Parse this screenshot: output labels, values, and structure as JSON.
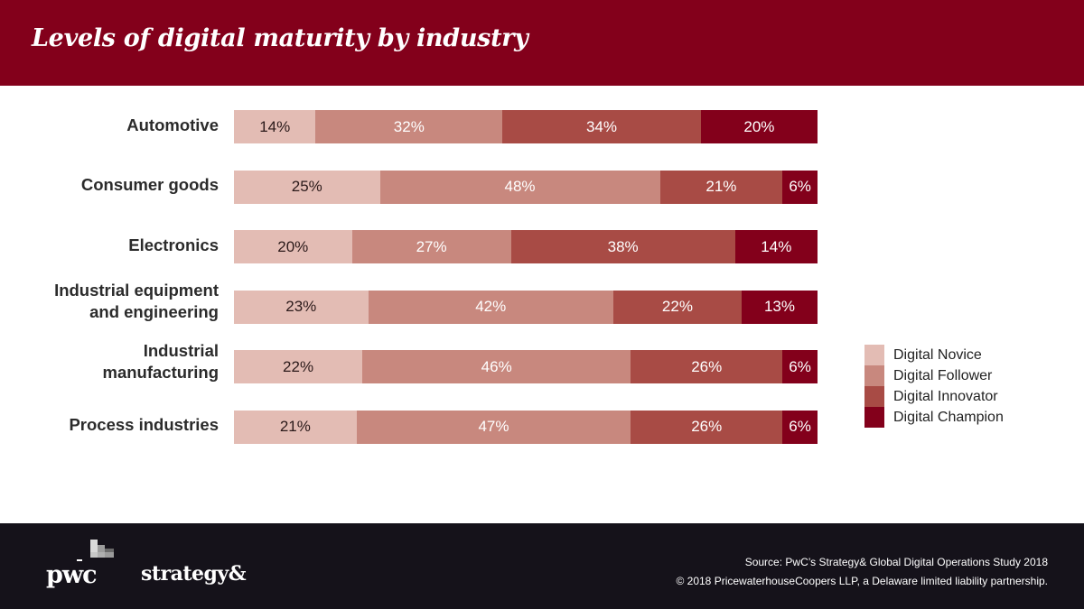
{
  "header": {
    "title": "Levels of digital maturity by industry"
  },
  "colors": {
    "header_bg": "#83001b",
    "footer_bg": "#15121a",
    "series": [
      "#e3bcb4",
      "#c8887e",
      "#a84b45",
      "#83001b"
    ]
  },
  "chart_data": {
    "type": "bar",
    "orientation": "horizontal",
    "stacked": true,
    "title": "Levels of digital maturity by industry",
    "xlabel": "",
    "ylabel": "",
    "xlim": [
      0,
      100
    ],
    "unit": "%",
    "grid": false,
    "legend_position": "right",
    "categories": [
      "Automotive",
      "Consumer goods",
      "Electronics",
      "Industrial equipment and engineering",
      "Industrial manufacturing",
      "Process industries"
    ],
    "category_lines": [
      [
        "Automotive"
      ],
      [
        "Consumer goods"
      ],
      [
        "Electronics"
      ],
      [
        "Industrial equipment",
        "and engineering"
      ],
      [
        "Industrial",
        "manufacturing"
      ],
      [
        "Process industries"
      ]
    ],
    "series": [
      {
        "name": "Digital Novice",
        "values": [
          14,
          25,
          20,
          23,
          22,
          21
        ]
      },
      {
        "name": "Digital Follower",
        "values": [
          32,
          48,
          27,
          42,
          46,
          47
        ]
      },
      {
        "name": "Digital Innovator",
        "values": [
          34,
          21,
          38,
          22,
          26,
          26
        ]
      },
      {
        "name": "Digital Champion",
        "values": [
          20,
          6,
          14,
          13,
          6,
          6
        ]
      }
    ]
  },
  "footer": {
    "logo_text": "pwc",
    "brand_text": "strategy&",
    "source": "Source: PwC’s Strategy& Global Digital Operations Study 2018",
    "copyright": "© 2018 PricewaterhouseCoopers LLP, a Delaware limited liability partnership."
  }
}
